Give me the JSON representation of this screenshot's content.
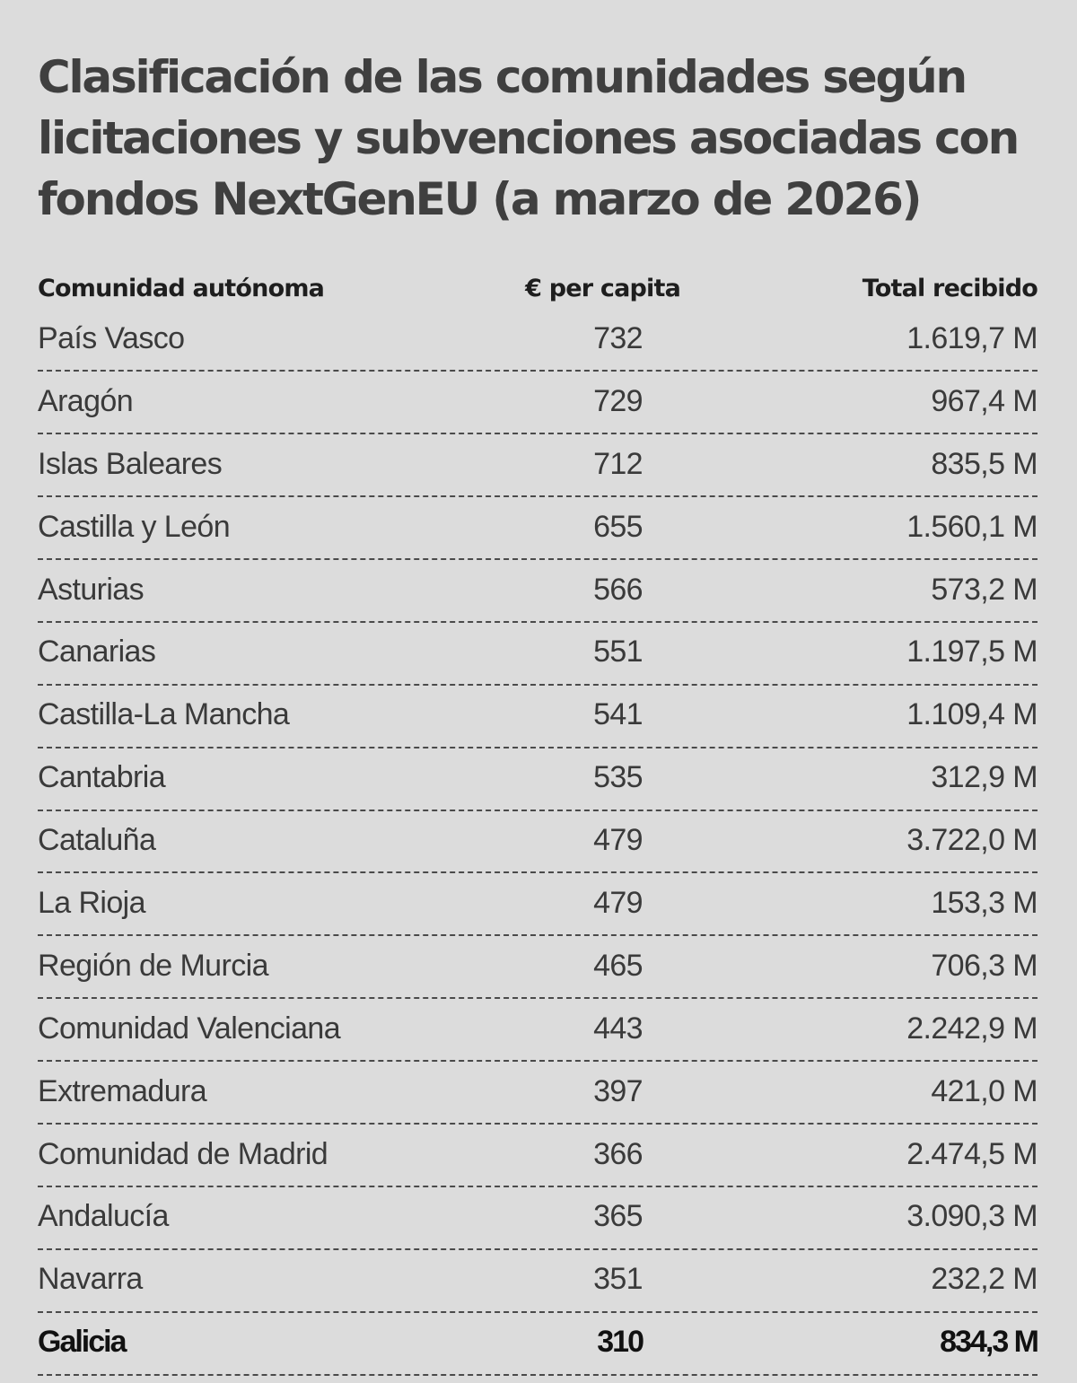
{
  "title": "Clasificación de las comunidades según licitaciones y subvenciones asociadas con fondos NextGenEU (a marzo de 2026)",
  "columns": {
    "name": "Comunidad autónoma",
    "per_capita": "€ per capita",
    "total": "Total recibido"
  },
  "chart_data": {
    "type": "table",
    "title": "Clasificación de las comunidades según licitaciones y subvenciones asociadas con fondos NextGenEU (a marzo de 2026)",
    "headers": [
      "Comunidad autónoma",
      "€ per capita",
      "Total recibido"
    ],
    "highlight": "Galicia",
    "rows": [
      {
        "name": "País Vasco",
        "per_capita": "732",
        "total": "1.619,7 M"
      },
      {
        "name": "Aragón",
        "per_capita": "729",
        "total": "967,4 M"
      },
      {
        "name": "Islas Baleares",
        "per_capita": "712",
        "total": "835,5 M"
      },
      {
        "name": "Castilla y León",
        "per_capita": "655",
        "total": "1.560,1 M"
      },
      {
        "name": "Asturias",
        "per_capita": "566",
        "total": "573,2 M"
      },
      {
        "name": "Canarias",
        "per_capita": "551",
        "total": "1.197,5 M"
      },
      {
        "name": "Castilla-La Mancha",
        "per_capita": "541",
        "total": "1.109,4 M"
      },
      {
        "name": "Cantabria",
        "per_capita": "535",
        "total": "312,9 M"
      },
      {
        "name": "Cataluña",
        "per_capita": "479",
        "total": "3.722,0 M"
      },
      {
        "name": "La Rioja",
        "per_capita": "479",
        "total": "153,3 M"
      },
      {
        "name": "Región de Murcia",
        "per_capita": "465",
        "total": "706,3 M"
      },
      {
        "name": "Comunidad Valenciana",
        "per_capita": "443",
        "total": "2.242,9 M"
      },
      {
        "name": "Extremadura",
        "per_capita": "397",
        "total": "421,0 M"
      },
      {
        "name": "Comunidad de Madrid",
        "per_capita": "366",
        "total": "2.474,5 M"
      },
      {
        "name": "Andalucía",
        "per_capita": "365",
        "total": "3.090,3 M"
      },
      {
        "name": "Navarra",
        "per_capita": "351",
        "total": "232,2 M"
      },
      {
        "name": "Galicia",
        "per_capita": "310",
        "total": "834,3 M"
      }
    ]
  }
}
